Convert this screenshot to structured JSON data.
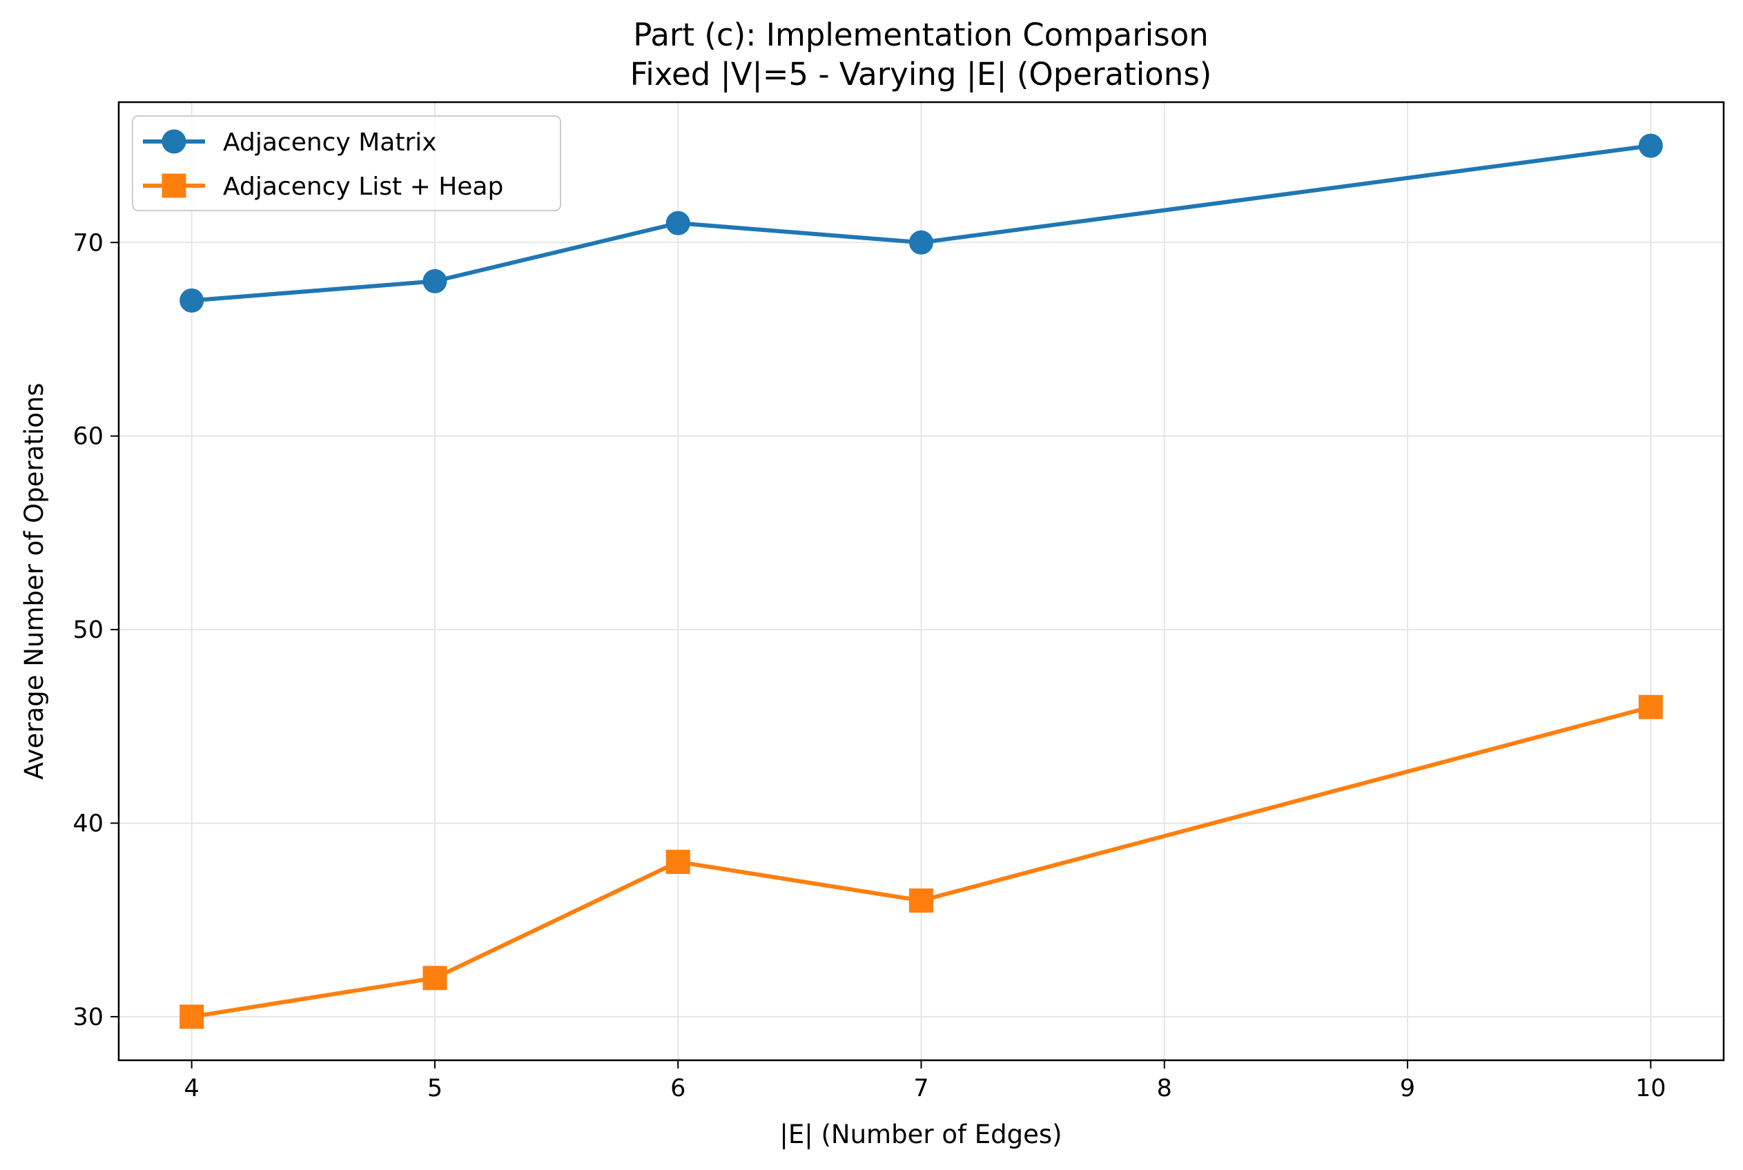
{
  "chart_data": {
    "type": "line",
    "title_line1": "Part (c): Implementation Comparison",
    "title_line2": "Fixed |V|=5 - Varying |E| (Operations)",
    "xlabel": "|E| (Number of Edges)",
    "ylabel": "Average Number of Operations",
    "x": [
      4,
      5,
      6,
      7,
      10
    ],
    "xlim": [
      3.7,
      10.3
    ],
    "ylim": [
      27.75,
      77.25
    ],
    "xticks": [
      4,
      5,
      6,
      7,
      8,
      9,
      10
    ],
    "yticks": [
      30,
      40,
      50,
      60,
      70
    ],
    "grid": true,
    "legend_position": "upper-left",
    "series": [
      {
        "name": "Adjacency Matrix",
        "values": [
          67,
          68,
          71,
          70,
          75
        ],
        "color": "#1f77b4",
        "marker": "circle"
      },
      {
        "name": "Adjacency List + Heap",
        "values": [
          30,
          32,
          38,
          36,
          46
        ],
        "color": "#ff7f0e",
        "marker": "square"
      }
    ]
  }
}
